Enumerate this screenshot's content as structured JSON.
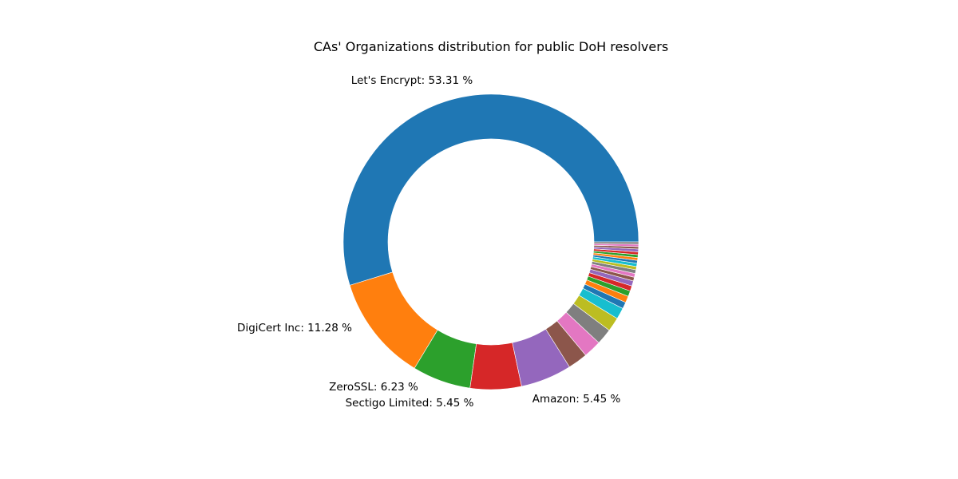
{
  "chart_data": {
    "type": "pie",
    "variant": "donut",
    "title": "CAs' Organizations distribution for public DoH resolvers",
    "start_angle_deg": 0,
    "direction": "counterclockwise",
    "wedge_edge": "white",
    "slices": [
      {
        "name": "Let's Encrypt",
        "value": 53.31,
        "label": "Let's Encrypt: 53.31 %",
        "color": "#1f77b4"
      },
      {
        "name": "DigiCert Inc",
        "value": 11.28,
        "label": "DigiCert Inc: 11.28 %",
        "color": "#ff7f0e"
      },
      {
        "name": "ZeroSSL",
        "value": 6.23,
        "label": "ZeroSSL: 6.23 %",
        "color": "#2ca02c"
      },
      {
        "name": "Sectigo Limited",
        "value": 5.45,
        "label": "Sectigo Limited: 5.45 %",
        "color": "#d62728"
      },
      {
        "name": "Amazon",
        "value": 5.45,
        "label": "Amazon: 5.45 %",
        "color": "#9467bd"
      },
      {
        "value": 2.1,
        "color": "#8c564b"
      },
      {
        "value": 1.9,
        "color": "#e377c2"
      },
      {
        "value": 1.7,
        "color": "#7f7f7f"
      },
      {
        "value": 1.5,
        "color": "#bcbd22"
      },
      {
        "value": 1.2,
        "color": "#17becf"
      },
      {
        "value": 0.7,
        "color": "#1f77b4"
      },
      {
        "value": 0.7,
        "color": "#ff7f0e"
      },
      {
        "value": 0.6,
        "color": "#2ca02c"
      },
      {
        "value": 0.55,
        "color": "#d62728"
      },
      {
        "value": 0.55,
        "color": "#9467bd"
      },
      {
        "value": 0.4,
        "color": "#8c564b"
      },
      {
        "value": 0.4,
        "color": "#e377c2"
      },
      {
        "value": 0.4,
        "color": "#7f7f7f"
      },
      {
        "value": 0.35,
        "color": "#bcbd22"
      },
      {
        "value": 0.35,
        "color": "#17becf"
      },
      {
        "value": 0.3,
        "color": "#1f77b4"
      },
      {
        "value": 0.3,
        "color": "#ff7f0e"
      },
      {
        "value": 0.3,
        "color": "#2ca02c"
      },
      {
        "value": 0.3,
        "color": "#d62728"
      },
      {
        "value": 0.3,
        "color": "#9467bd"
      },
      {
        "value": 0.25,
        "color": "#8c564b"
      },
      {
        "value": 0.25,
        "color": "#e377c2"
      },
      {
        "value": 0.25,
        "color": "#7f7f7f"
      }
    ]
  }
}
